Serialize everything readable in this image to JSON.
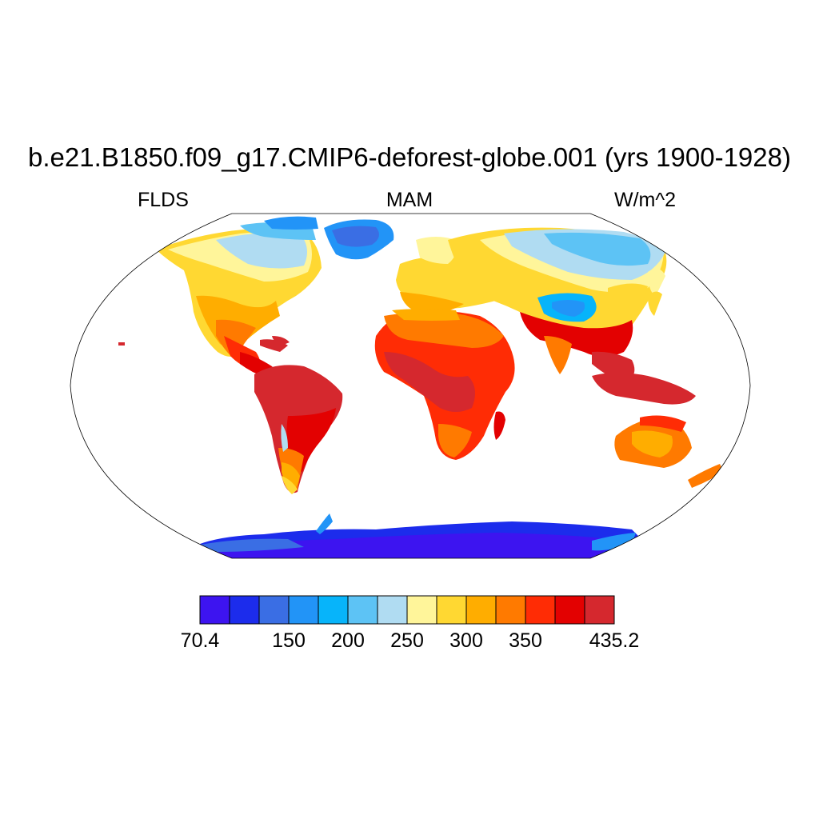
{
  "title": "b.e21.B1850.f09_g17.CMIP6-deforest-globe.001 (yrs 1900-1928)",
  "left_string": "FLDS",
  "center_string": "MAM",
  "right_string": "W/m^2",
  "colorbar": {
    "colors": [
      "#3d14f0",
      "#1c2cec",
      "#3a6ee4",
      "#2294f7",
      "#07b4fa",
      "#5dc3f5",
      "#b0dcf2",
      "#fff59a",
      "#ffd832",
      "#ffad00",
      "#ff7a00",
      "#ff2c05",
      "#e30101",
      "#d5282e"
    ],
    "labels": [
      {
        "text": "70.4",
        "index": 0
      },
      {
        "text": "150",
        "index": 3
      },
      {
        "text": "200",
        "index": 5
      },
      {
        "text": "250",
        "index": 7
      },
      {
        "text": "300",
        "index": 9
      },
      {
        "text": "350",
        "index": 11
      },
      {
        "text": "435.2",
        "index": 14
      }
    ]
  },
  "map": {
    "projection": "Robinson",
    "ocean_fill": "#ffffff",
    "outline_color": "#000000"
  }
}
